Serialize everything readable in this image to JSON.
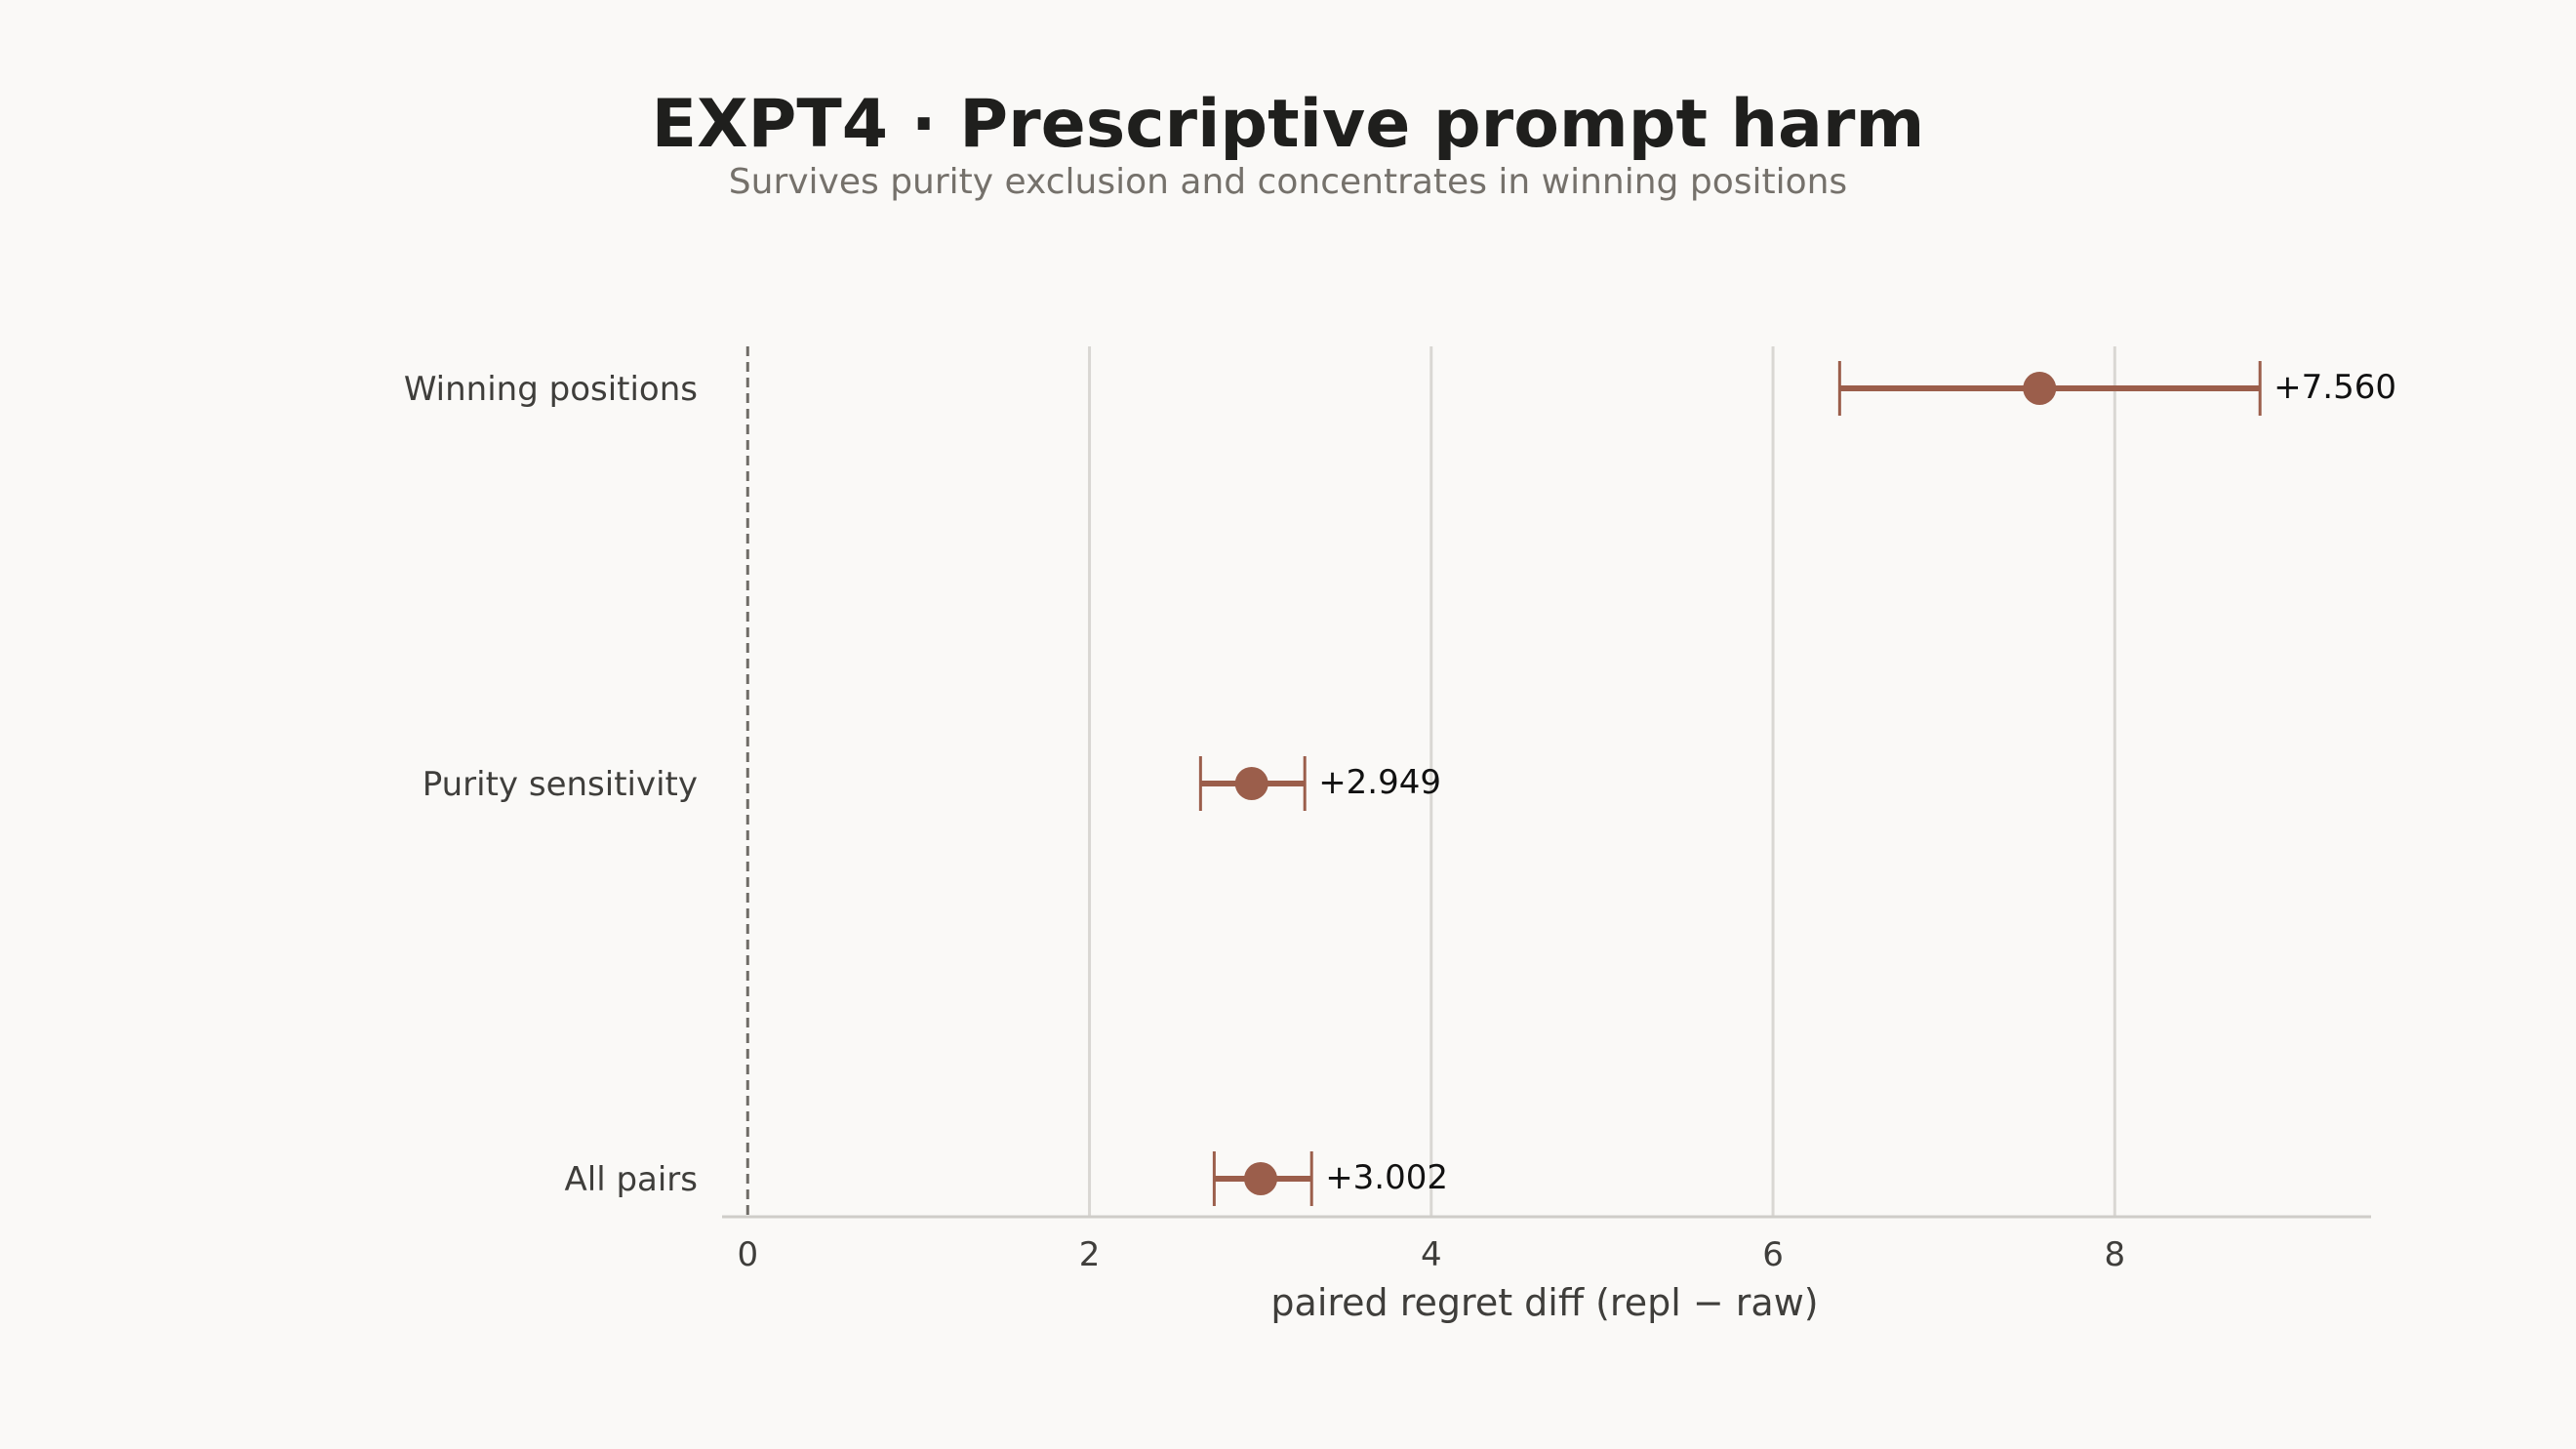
{
  "chart_data": {
    "type": "scatter",
    "title": "EXPT4 · Prescriptive prompt harm",
    "subtitle": "Survives purity exclusion and concentrates in winning positions",
    "xlabel": "paired regret diff (repl − raw)",
    "ylabel": "",
    "xlim": [
      -0.15,
      9.5
    ],
    "xticks": [
      0,
      2,
      4,
      6,
      8
    ],
    "xtick_labels": [
      "0",
      "2",
      "4",
      "6",
      "8"
    ],
    "grid": "vertical",
    "reference_line": 0,
    "categories": [
      "Winning positions",
      "Purity sensitivity",
      "All pairs"
    ],
    "points": [
      {
        "label": "Winning positions",
        "value": 7.56,
        "ci_low": 6.39,
        "ci_high": 8.85,
        "value_label": "+7.560"
      },
      {
        "label": "Purity sensitivity",
        "value": 2.949,
        "ci_low": 2.65,
        "ci_high": 3.26,
        "value_label": "+2.949"
      },
      {
        "label": "All pairs",
        "value": 3.002,
        "ci_low": 2.73,
        "ci_high": 3.3,
        "value_label": "+3.002"
      }
    ],
    "colors": {
      "marker": "#9b5e4b",
      "grid": "#d9d7d3",
      "reference": "#6f6c67",
      "axis": "#cfcdc9",
      "background": "#faf9f7"
    }
  }
}
